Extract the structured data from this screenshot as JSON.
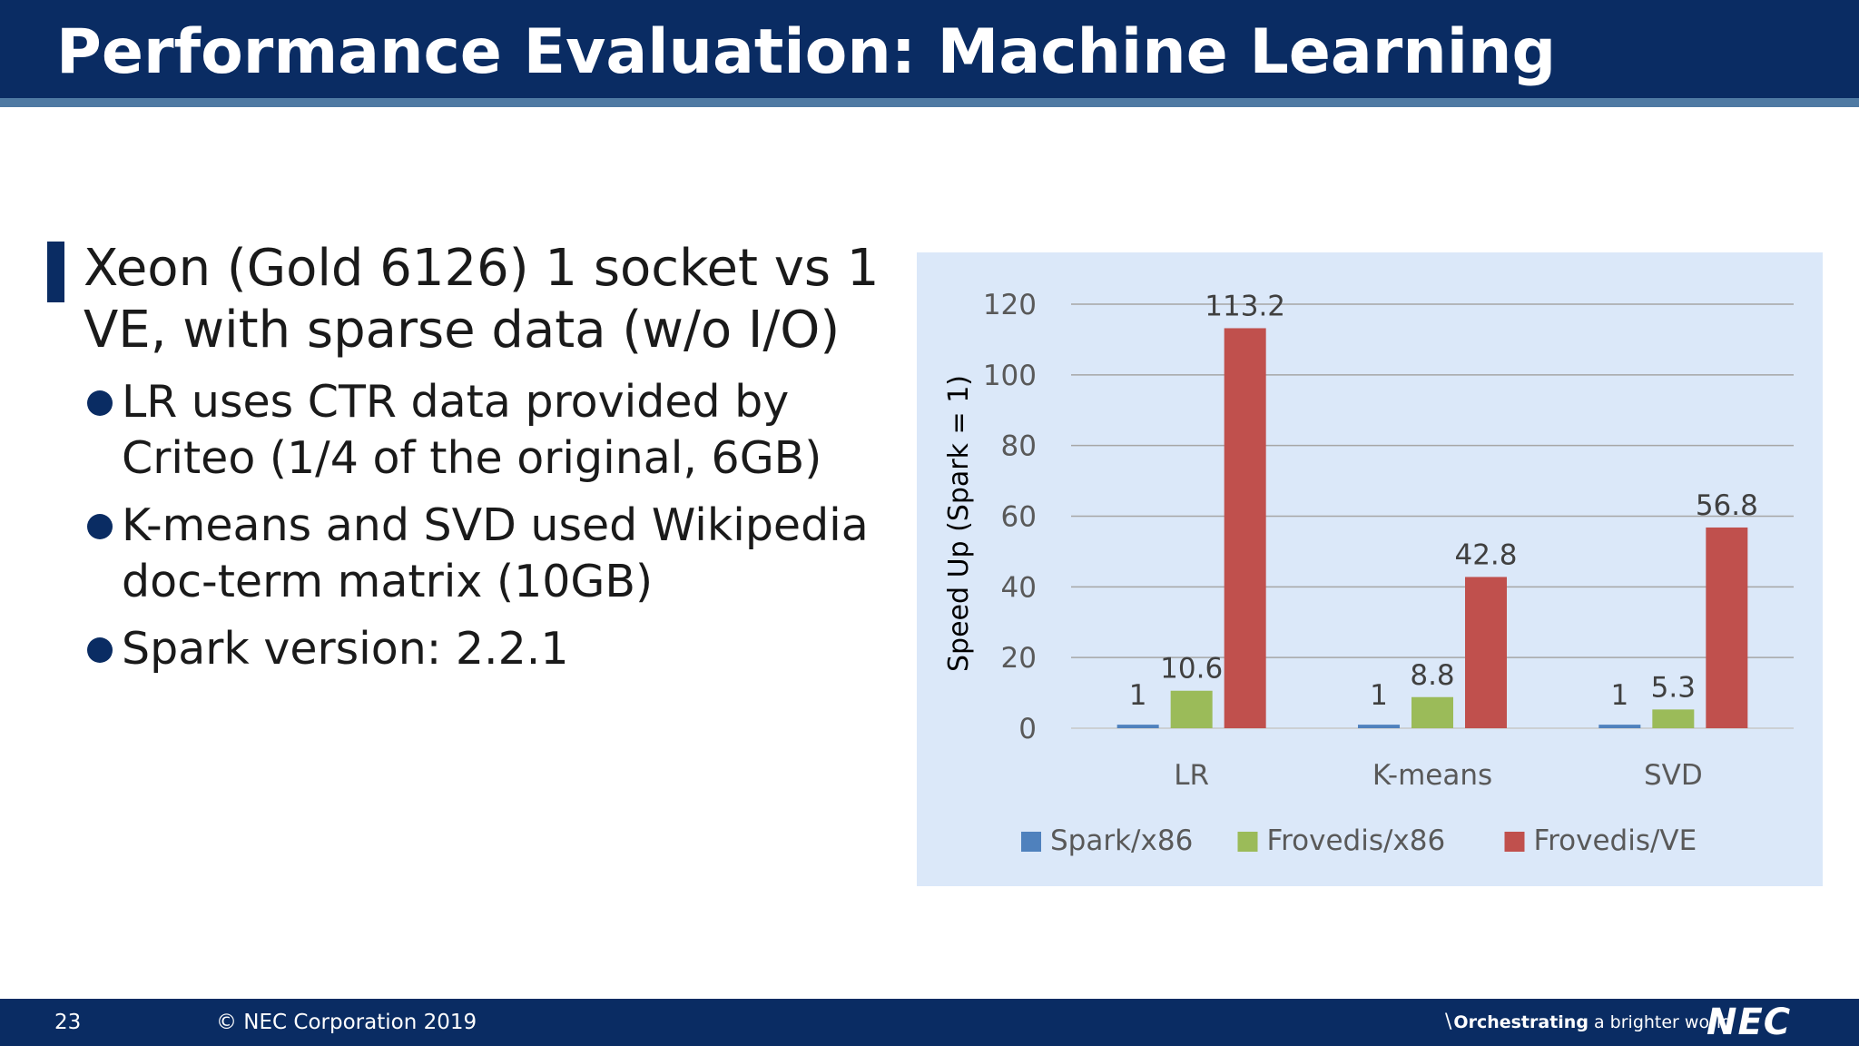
{
  "slide": {
    "title": "Performance Evaluation: Machine Learning",
    "main_bullet": "Xeon (Gold 6126) 1 socket vs 1 VE, with sparse data (w/o I/O)",
    "sub_bullets": [
      "LR uses CTR data provided by Criteo (1/4 of the original, 6GB)",
      "K-means and SVD used Wikipedia doc-term matrix (10GB)",
      "Spark version: 2.2.1"
    ]
  },
  "footer": {
    "page_number": "23",
    "copyright": "© NEC Corporation 2019",
    "tagline_strong": "Orchestrating",
    "tagline_rest": "a brighter world",
    "logo": "NEC"
  },
  "colors": {
    "header_bg": "#0a2c63",
    "chart_bg": "#dbe8f9"
  },
  "chart_data": {
    "type": "bar",
    "categories": [
      "LR",
      "K-means",
      "SVD"
    ],
    "series": [
      {
        "name": "Spark/x86",
        "color": "#4f81bd",
        "values": [
          1,
          1,
          1
        ],
        "labels": [
          "1",
          "1",
          "1"
        ]
      },
      {
        "name": "Frovedis/x86",
        "color": "#9bbb59",
        "values": [
          10.6,
          8.8,
          5.3
        ],
        "labels": [
          "10.6",
          "8.8",
          "5.3"
        ]
      },
      {
        "name": "Frovedis/VE",
        "color": "#c0504d",
        "values": [
          113.2,
          42.8,
          56.8
        ],
        "labels": [
          "113.2",
          "42.8",
          "56.8"
        ]
      }
    ],
    "title": "",
    "xlabel": "",
    "ylabel": "Speed Up (Spark = 1)",
    "ylim": [
      0,
      120
    ],
    "yticks": [
      0,
      20,
      40,
      60,
      80,
      100,
      120
    ],
    "grid": true,
    "legend_position": "bottom"
  }
}
